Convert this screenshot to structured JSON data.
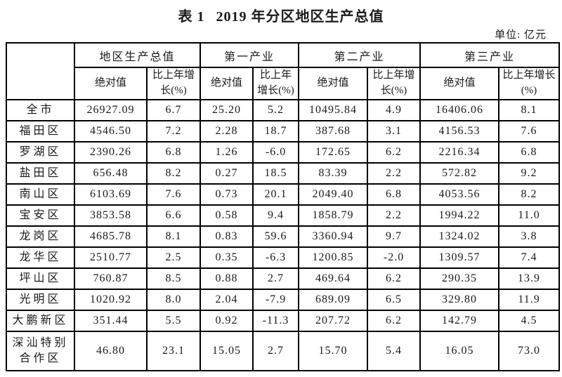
{
  "title": {
    "label": "表 1",
    "text": "2019 年分区地区生产总值"
  },
  "unit_label": "单位: 亿元",
  "chart_data": {
    "type": "table",
    "title": "表 1 2019 年分区地区生产总值",
    "unit": "亿元",
    "column_groups": [
      "地区生产总值",
      "第一产业",
      "第二产业",
      "第三产业"
    ],
    "sub_headers": [
      "绝对值",
      "比上年增长(%)"
    ],
    "rows": [
      {
        "region": "全市",
        "values": [
          "26927.09",
          "6.7",
          "25.20",
          "5.2",
          "10495.84",
          "4.9",
          "16406.06",
          "8.1"
        ]
      },
      {
        "region": "福田区",
        "values": [
          "4546.50",
          "7.2",
          "2.28",
          "18.7",
          "387.68",
          "3.1",
          "4156.53",
          "7.6"
        ]
      },
      {
        "region": "罗湖区",
        "values": [
          "2390.26",
          "6.8",
          "1.26",
          "-6.0",
          "172.65",
          "6.2",
          "2216.34",
          "6.8"
        ]
      },
      {
        "region": "盐田区",
        "values": [
          "656.48",
          "8.2",
          "0.27",
          "18.5",
          "83.39",
          "2.2",
          "572.82",
          "9.2"
        ]
      },
      {
        "region": "南山区",
        "values": [
          "6103.69",
          "7.6",
          "0.73",
          "20.1",
          "2049.40",
          "6.8",
          "4053.56",
          "8.2"
        ]
      },
      {
        "region": "宝安区",
        "values": [
          "3853.58",
          "6.6",
          "0.58",
          "9.4",
          "1858.79",
          "2.2",
          "1994.22",
          "11.0"
        ]
      },
      {
        "region": "龙岗区",
        "values": [
          "4685.78",
          "8.1",
          "0.83",
          "59.6",
          "3360.94",
          "9.7",
          "1324.02",
          "3.8"
        ]
      },
      {
        "region": "龙华区",
        "values": [
          "2510.77",
          "2.5",
          "0.35",
          "-6.3",
          "1200.85",
          "-2.0",
          "1309.57",
          "7.4"
        ]
      },
      {
        "region": "坪山区",
        "values": [
          "760.87",
          "8.5",
          "0.88",
          "2.7",
          "469.64",
          "6.2",
          "290.35",
          "13.9"
        ]
      },
      {
        "region": "光明区",
        "values": [
          "1020.92",
          "8.0",
          "2.04",
          "-7.9",
          "689.09",
          "6.5",
          "329.80",
          "11.9"
        ]
      },
      {
        "region": "大鹏新区",
        "values": [
          "351.44",
          "5.5",
          "0.92",
          "-11.3",
          "207.72",
          "6.2",
          "142.79",
          "4.5"
        ]
      },
      {
        "region": "深汕特别合作区",
        "values": [
          "46.80",
          "23.1",
          "15.05",
          "2.7",
          "15.70",
          "5.4",
          "16.05",
          "73.0"
        ]
      }
    ]
  }
}
